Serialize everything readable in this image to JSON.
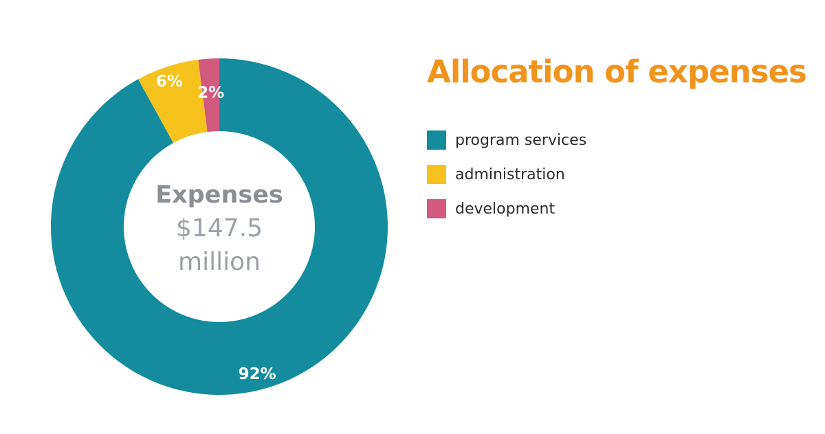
{
  "chart_data": {
    "type": "pie",
    "title": "Allocation of expenses",
    "categories": [
      "program services",
      "administration",
      "development"
    ],
    "values": [
      92,
      6,
      2
    ],
    "labels": [
      "92%",
      "6%",
      "2%"
    ],
    "colors": [
      "#148c9e",
      "#f6c21d",
      "#d15a7e"
    ],
    "center": {
      "title": "Expenses",
      "line1": "$147.5",
      "line2": "million"
    },
    "legend_position": "right"
  }
}
